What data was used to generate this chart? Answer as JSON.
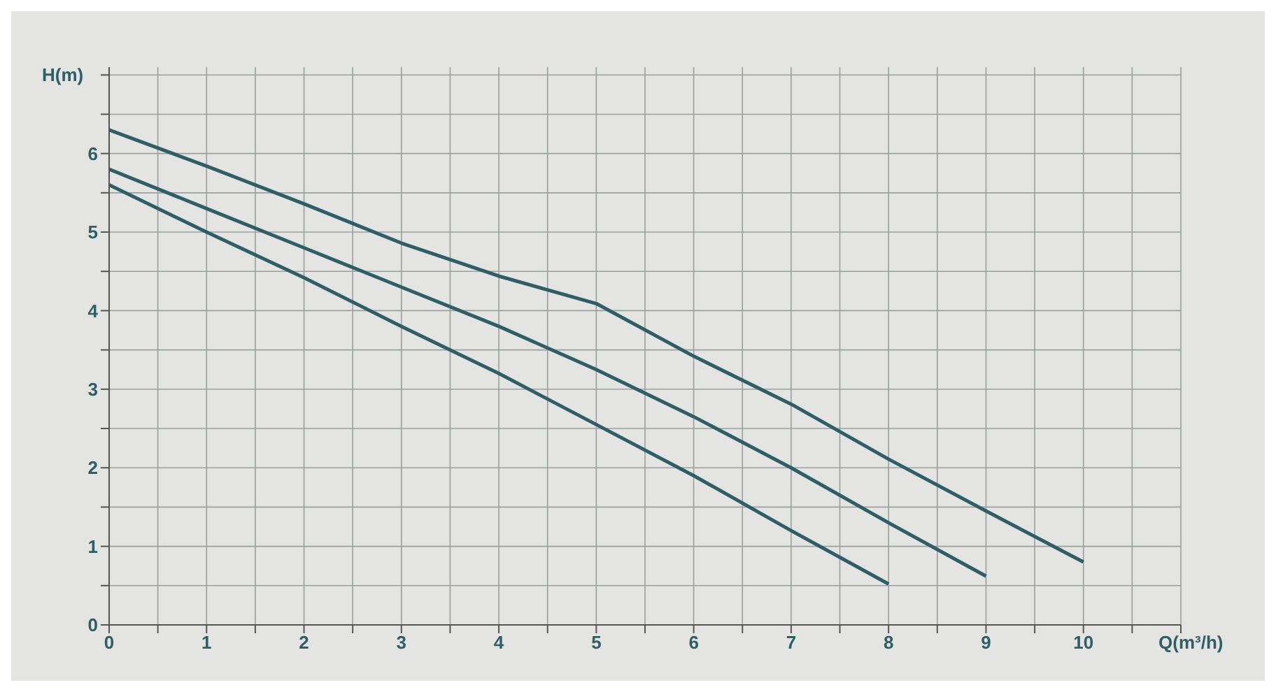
{
  "chart_data": {
    "type": "line",
    "xlabel": "Q(m³/h)",
    "ylabel": "H(m)",
    "x": [
      0,
      1,
      2,
      3,
      4,
      5,
      6,
      7,
      8,
      9,
      10
    ],
    "series": [
      {
        "color": "#2f5f66",
        "values": [
          6.3,
          5.84,
          5.36,
          4.86,
          4.44,
          4.09,
          3.42,
          2.81,
          2.11,
          1.45,
          0.8
        ]
      },
      {
        "color": "#2f5f66",
        "x": [
          0,
          1,
          2,
          3,
          4,
          5,
          6,
          7,
          8,
          9
        ],
        "values": [
          5.8,
          5.3,
          4.8,
          4.3,
          3.8,
          3.25,
          2.65,
          2.0,
          1.3,
          0.62
        ]
      },
      {
        "color": "#2f5f66",
        "x": [
          0,
          1,
          2,
          3,
          4,
          5,
          6,
          7,
          8
        ],
        "values": [
          5.6,
          5.0,
          4.42,
          3.8,
          3.2,
          2.55,
          1.9,
          1.2,
          0.52
        ]
      }
    ],
    "xlim": [
      0,
      11
    ],
    "ylim": [
      0,
      7.1
    ],
    "xticks": [
      0,
      {
        "value": 0.5,
        "label": null
      },
      1,
      {
        "value": 1.5,
        "label": null
      },
      2,
      {
        "value": 2.5,
        "label": null
      },
      3,
      {
        "value": 3.5,
        "label": null
      },
      4,
      {
        "value": 4.5,
        "label": null
      },
      5,
      {
        "value": 5.5,
        "label": null
      },
      6,
      {
        "value": 6.5,
        "label": null
      },
      7,
      {
        "value": 7.5,
        "label": null
      },
      8,
      {
        "value": 8.5,
        "label": null
      },
      9,
      {
        "value": 9.5,
        "label": null
      },
      10,
      {
        "value": 10.5,
        "label": null
      },
      {
        "value": 11,
        "label": null
      }
    ],
    "yticks": [
      0,
      {
        "value": 0.5,
        "label": null
      },
      1,
      {
        "value": 1.5,
        "label": null
      },
      2,
      {
        "value": 2.5,
        "label": null
      },
      3,
      {
        "value": 3.5,
        "label": null
      },
      4,
      {
        "value": 4.5,
        "label": null
      },
      5,
      {
        "value": 5.5,
        "label": null
      },
      6,
      {
        "value": 6.5,
        "label": null
      },
      {
        "value": 7,
        "label": null
      }
    ],
    "grid": true,
    "marker": "none",
    "line_style": "solid"
  }
}
